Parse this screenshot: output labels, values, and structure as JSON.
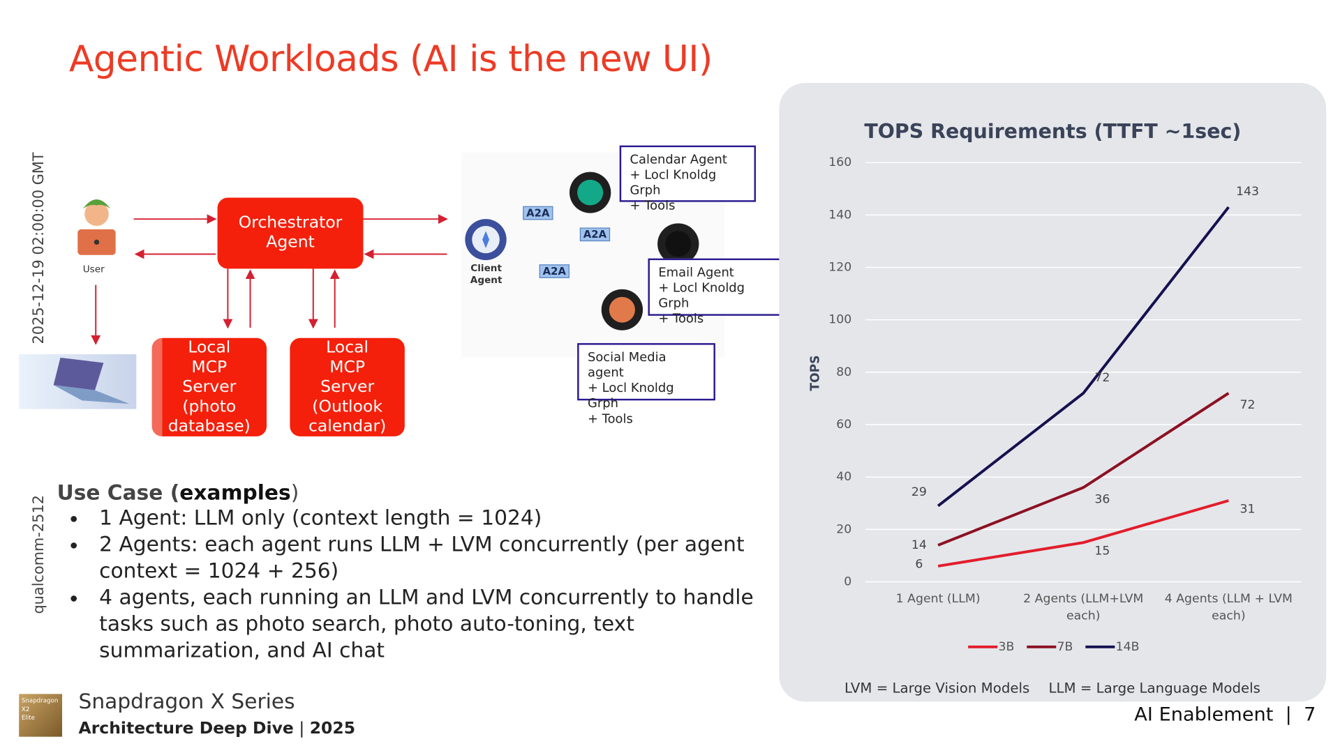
{
  "header": {
    "title": "Agentic Workloads (AI is the new UI)"
  },
  "watermark": {
    "timestamp": "2025-12-19 02:00:00 GMT",
    "id": "qualcomm-2512"
  },
  "diagram": {
    "user": "User",
    "orchestrator": [
      "Orchestrator",
      "Agent"
    ],
    "mcp_servers": [
      [
        "Local",
        "MCP",
        "Server",
        "(photo",
        "database)"
      ],
      [
        "Local",
        "MCP",
        "Server",
        "(Outlook",
        "calendar)"
      ]
    ],
    "client_agent": [
      "Client",
      "Agent"
    ],
    "a2a": [
      "A2A",
      "A2A",
      "A2A"
    ],
    "agents": [
      [
        "Calendar Agent",
        "+ Locl Knoldg Grph",
        "+ Tools"
      ],
      [
        "Email Agent",
        "+ Locl Knoldg Grph",
        "+ Tools"
      ],
      [
        "Social Media agent",
        "+ Locl Knoldg Grph",
        "+ Tools"
      ]
    ]
  },
  "use_case": {
    "heading": [
      "Use Case (",
      "examples",
      ")"
    ],
    "bullets": [
      "1 Agent: LLM only (context length = 1024)",
      "2 Agents: each agent runs LLM + LVM concurrently (per agent context = 1024 + 256)",
      "4 agents, each running an LLM and LVM concurrently to handle tasks such as photo search, photo auto-toning, text summarization, and AI chat"
    ]
  },
  "footer": {
    "logo": [
      "Snapdragon",
      "X2",
      "Elite"
    ],
    "series": "Snapdragon X Series",
    "subtitle": "Architecture Deep Dive",
    "year": "2025",
    "section": "AI Enablement",
    "page": "7"
  },
  "chart_data": {
    "type": "line",
    "title": "TOPS Requirements (TTFT ~1sec)",
    "y_label": "TOPS",
    "categories": [
      "1 Agent (LLM)",
      "2 Agents (LLM+LVM each)",
      "4 Agents (LLM + LVM each)"
    ],
    "series": [
      {
        "name": "3B",
        "color": "#e21d2b",
        "values": [
          6,
          15,
          31
        ]
      },
      {
        "name": "7B",
        "color": "#8c1022",
        "values": [
          14,
          36,
          72
        ]
      },
      {
        "name": "14B",
        "color": "#15114f",
        "values": [
          29,
          72,
          143
        ]
      }
    ],
    "ylim": [
      0,
      160
    ],
    "yticks": [
      0,
      20,
      40,
      60,
      80,
      100,
      120,
      140,
      160
    ],
    "grid": true,
    "legend": "bottom",
    "notes": [
      "LVM = Large Vision Models",
      "LLM = Large Language Models"
    ]
  }
}
